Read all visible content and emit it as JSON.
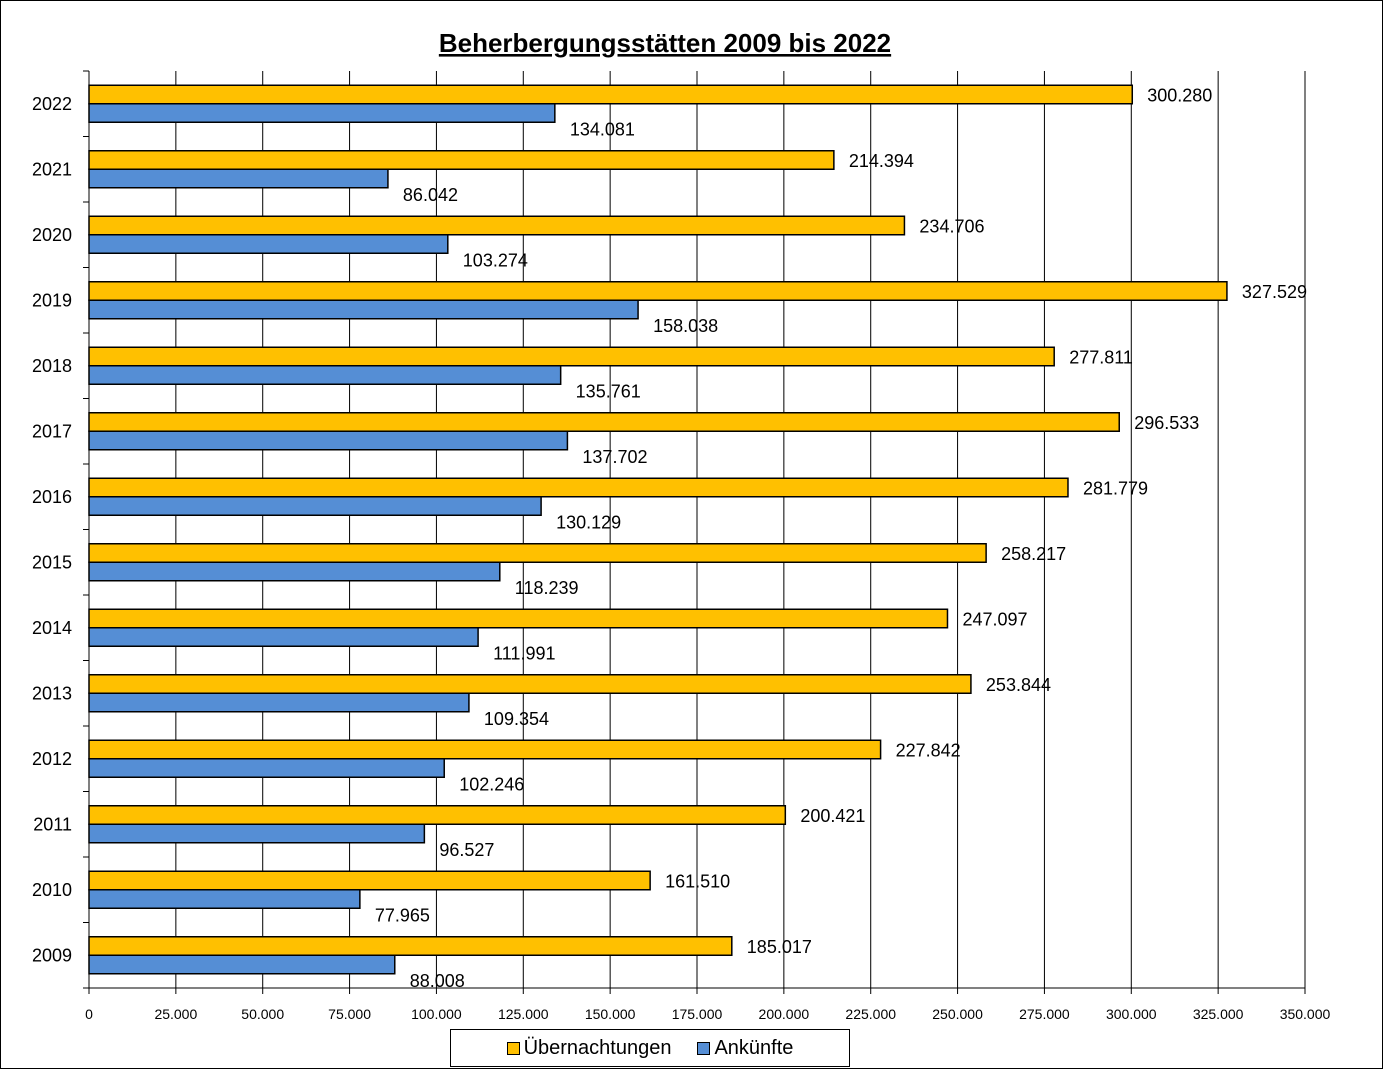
{
  "chart_data": {
    "type": "bar",
    "orientation": "horizontal",
    "title": "Beherbergungsstätten 2009 bis 2022",
    "categories": [
      "2022",
      "2021",
      "2020",
      "2019",
      "2018",
      "2017",
      "2016",
      "2015",
      "2014",
      "2013",
      "2012",
      "2011",
      "2010",
      "2009"
    ],
    "series": [
      {
        "name": "Übernachtungen",
        "color": "#FFC000",
        "values": [
          300280,
          214394,
          234706,
          327529,
          277811,
          296533,
          281779,
          258217,
          247097,
          253844,
          227842,
          200421,
          161510,
          185017
        ],
        "labels": [
          "300.280",
          "214.394",
          "234.706",
          "327.529",
          "277.811",
          "296.533",
          "281.779",
          "258.217",
          "247.097",
          "253.844",
          "227.842",
          "200.421",
          "161.510",
          "185.017"
        ]
      },
      {
        "name": "Ankünfte",
        "color": "#558ED5",
        "values": [
          134081,
          86042,
          103274,
          158038,
          135761,
          137702,
          130129,
          118239,
          111991,
          109354,
          102246,
          96527,
          77965,
          88008
        ],
        "labels": [
          "134.081",
          "86.042",
          "103.274",
          "158.038",
          "135.761",
          "137.702",
          "130.129",
          "118.239",
          "111.991",
          "109.354",
          "102.246",
          "96.527",
          "77.965",
          "88.008"
        ]
      }
    ],
    "xlim": [
      0,
      350000
    ],
    "xticks": [
      0,
      25000,
      50000,
      75000,
      100000,
      125000,
      150000,
      175000,
      200000,
      225000,
      250000,
      275000,
      300000,
      325000,
      350000
    ],
    "xtick_labels": [
      "0",
      "25.000",
      "50.000",
      "75.000",
      "100.000",
      "125.000",
      "150.000",
      "175.000",
      "200.000",
      "225.000",
      "250.000",
      "275.000",
      "300.000",
      "325.000",
      "350.000"
    ],
    "grid": "vertical",
    "legend": "bottom-center"
  }
}
